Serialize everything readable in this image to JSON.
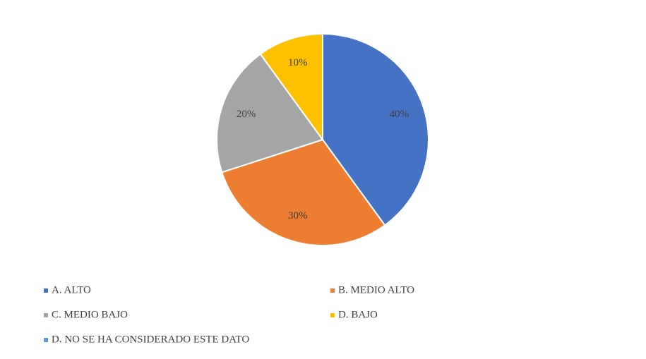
{
  "chart_data": {
    "type": "pie",
    "categories": [
      "A. ALTO",
      "B. MEDIO ALTO",
      "C. MEDIO BAJO",
      "D. BAJO",
      "D. NO SE HA CONSIDERADO ESTE DATO"
    ],
    "values": [
      40,
      30,
      20,
      10,
      0
    ],
    "value_labels": [
      "40%",
      "30%",
      "20%",
      "10%",
      null
    ],
    "colors": [
      "#4472c4",
      "#ed7d31",
      "#a5a5a5",
      "#ffc000",
      "#5b9bd5"
    ]
  }
}
